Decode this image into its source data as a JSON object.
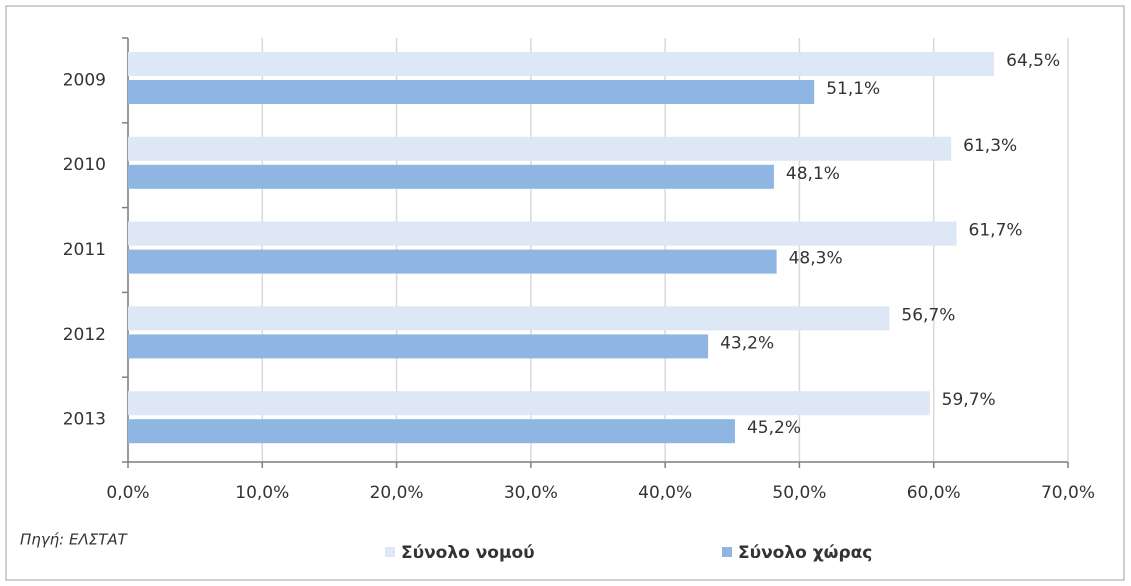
{
  "chart_data": {
    "type": "hbar",
    "categories": [
      "2009",
      "2010",
      "2011",
      "2012",
      "2013"
    ],
    "series": [
      {
        "name": "Σύνολο νομού",
        "color": "#dde7f5",
        "values": [
          64.5,
          61.3,
          61.7,
          56.7,
          59.7
        ],
        "value_labels": [
          "64,5%",
          "61,3%",
          "61,7%",
          "56,7%",
          "59,7%"
        ]
      },
      {
        "name": "Σύνολο χώρας",
        "color": "#8fb6e3",
        "values": [
          51.1,
          48.1,
          48.3,
          43.2,
          45.2
        ],
        "value_labels": [
          "51,1%",
          "48,1%",
          "48,3%",
          "43,2%",
          "45,2%"
        ]
      }
    ],
    "xlim": [
      0,
      70
    ],
    "xticks": [
      {
        "value": 0,
        "label": "0,0%"
      },
      {
        "value": 10,
        "label": "10,0%"
      },
      {
        "value": 20,
        "label": "20,0%"
      },
      {
        "value": 30,
        "label": "30,0%"
      },
      {
        "value": 40,
        "label": "40,0%"
      },
      {
        "value": 50,
        "label": "50,0%"
      },
      {
        "value": 60,
        "label": "60,0%"
      },
      {
        "value": 70,
        "label": "70,0%"
      }
    ],
    "grid": true,
    "legend": "bottom",
    "source": "Πηγή: ΕΛΣΤΑΤ"
  }
}
